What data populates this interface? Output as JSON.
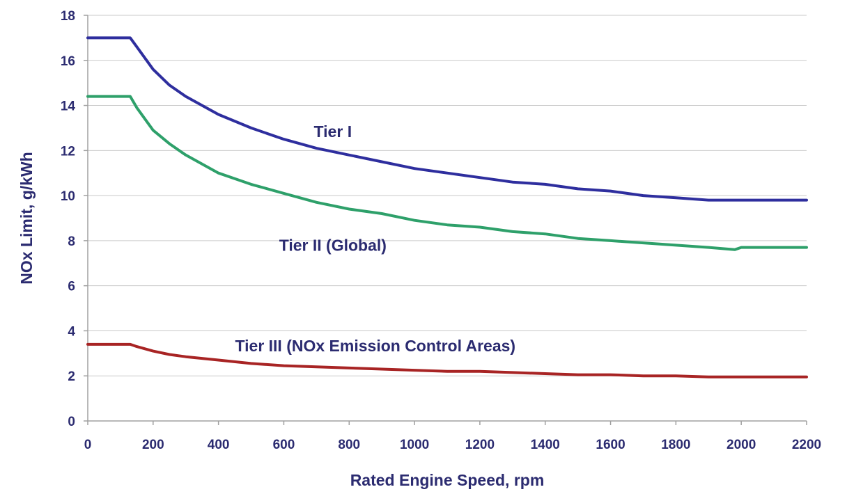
{
  "chart_data": {
    "type": "line",
    "title": "",
    "xlabel": "Rated Engine Speed, rpm",
    "ylabel": "NOx Limit, g/kWh",
    "xlim": [
      0,
      2200
    ],
    "ylim": [
      0,
      18
    ],
    "x_ticks": [
      "0",
      "200",
      "400",
      "600",
      "800",
      "1000",
      "1200",
      "1400",
      "1600",
      "1800",
      "2000",
      "2200"
    ],
    "y_ticks": [
      "0",
      "2",
      "4",
      "6",
      "8",
      "10",
      "12",
      "14",
      "16",
      "18"
    ],
    "grid": "horizontal",
    "legend": "none",
    "series": [
      {
        "name": "Tier I",
        "color": "#2e2e9e",
        "x": [
          0,
          130,
          150,
          200,
          250,
          300,
          400,
          500,
          600,
          700,
          800,
          900,
          1000,
          1100,
          1200,
          1300,
          1400,
          1500,
          1600,
          1700,
          1800,
          1900,
          2000,
          2200
        ],
        "y": [
          17.0,
          17.0,
          16.6,
          15.6,
          14.9,
          14.4,
          13.6,
          13.0,
          12.5,
          12.1,
          11.8,
          11.5,
          11.2,
          11.0,
          10.8,
          10.6,
          10.5,
          10.3,
          10.2,
          10.0,
          9.9,
          9.8,
          9.8,
          9.8
        ]
      },
      {
        "name": "Tier II (Global)",
        "color": "#2ea06a",
        "x": [
          0,
          130,
          150,
          200,
          250,
          300,
          400,
          500,
          600,
          700,
          800,
          900,
          1000,
          1100,
          1200,
          1300,
          1400,
          1500,
          1600,
          1700,
          1800,
          1900,
          1980,
          2000,
          2200
        ],
        "y": [
          14.4,
          14.4,
          13.9,
          12.9,
          12.3,
          11.8,
          11.0,
          10.5,
          10.1,
          9.7,
          9.4,
          9.2,
          8.9,
          8.7,
          8.6,
          8.4,
          8.3,
          8.1,
          8.0,
          7.9,
          7.8,
          7.7,
          7.6,
          7.7,
          7.7
        ]
      },
      {
        "name": "Tier III (NOx Emission Control Areas)",
        "color": "#a82424",
        "x": [
          0,
          130,
          150,
          200,
          250,
          300,
          400,
          500,
          600,
          700,
          800,
          900,
          1000,
          1100,
          1200,
          1300,
          1400,
          1500,
          1600,
          1700,
          1800,
          1900,
          2000,
          2200
        ],
        "y": [
          3.4,
          3.4,
          3.3,
          3.1,
          2.95,
          2.85,
          2.7,
          2.55,
          2.45,
          2.4,
          2.35,
          2.3,
          2.25,
          2.2,
          2.2,
          2.15,
          2.1,
          2.05,
          2.05,
          2.0,
          2.0,
          1.95,
          1.95,
          1.95
        ]
      }
    ]
  }
}
